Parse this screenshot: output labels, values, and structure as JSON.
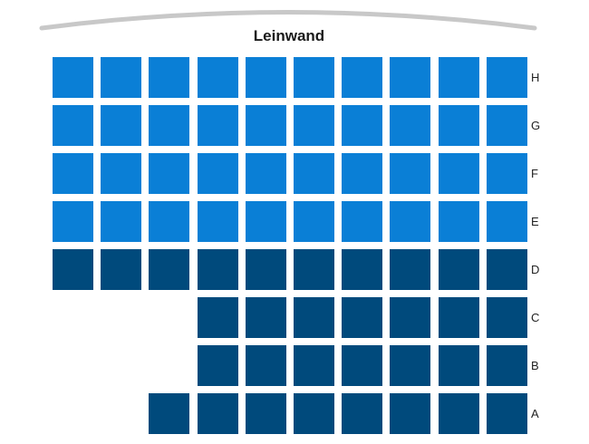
{
  "screen": {
    "label": "Leinwand"
  },
  "colors": {
    "available": "#0a7fd6",
    "occupied": "#004a7c",
    "screen_arc": "#c8c8c8"
  },
  "rows": [
    {
      "label": "H",
      "seats": [
        "available",
        "available",
        "available",
        "available",
        "available",
        "available",
        "available",
        "available",
        "available",
        "available"
      ]
    },
    {
      "label": "G",
      "seats": [
        "available",
        "available",
        "available",
        "available",
        "available",
        "available",
        "available",
        "available",
        "available",
        "available"
      ]
    },
    {
      "label": "F",
      "seats": [
        "available",
        "available",
        "available",
        "available",
        "available",
        "available",
        "available",
        "available",
        "available",
        "available"
      ]
    },
    {
      "label": "E",
      "seats": [
        "available",
        "available",
        "available",
        "available",
        "available",
        "available",
        "available",
        "available",
        "available",
        "available"
      ]
    },
    {
      "label": "D",
      "seats": [
        "occupied",
        "occupied",
        "occupied",
        "occupied",
        "occupied",
        "occupied",
        "occupied",
        "occupied",
        "occupied",
        "occupied"
      ]
    },
    {
      "label": "C",
      "seats": [
        null,
        null,
        null,
        "occupied",
        "occupied",
        "occupied",
        "occupied",
        "occupied",
        "occupied",
        "occupied"
      ]
    },
    {
      "label": "B",
      "seats": [
        null,
        null,
        null,
        "occupied",
        "occupied",
        "occupied",
        "occupied",
        "occupied",
        "occupied",
        "occupied"
      ]
    },
    {
      "label": "A",
      "seats": [
        null,
        null,
        "occupied",
        "occupied",
        "occupied",
        "occupied",
        "occupied",
        "occupied",
        "occupied",
        "occupied"
      ]
    }
  ]
}
